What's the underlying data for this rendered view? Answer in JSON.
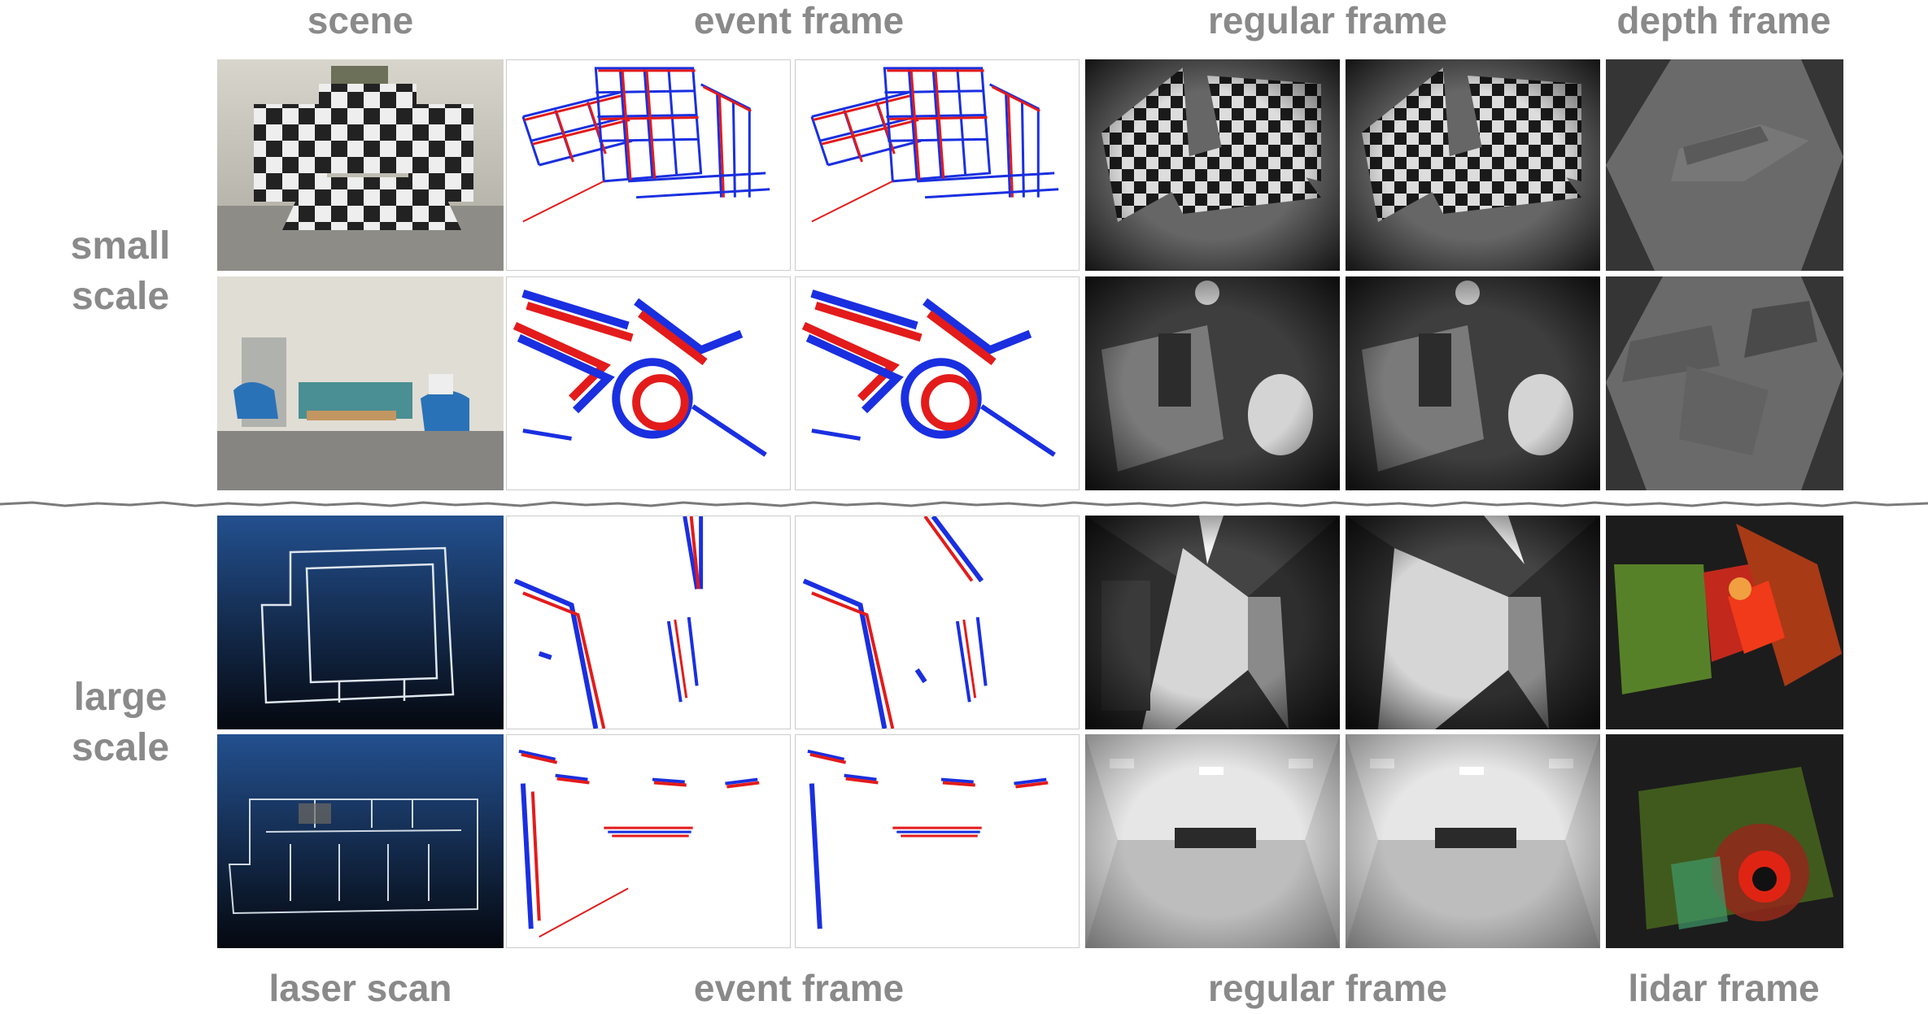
{
  "column_headers_top": {
    "scene": "scene",
    "event_frame": "event frame",
    "regular_frame": "regular frame",
    "depth_frame": "depth frame"
  },
  "column_headers_bottom": {
    "laser_scan": "laser scan",
    "event_frame": "event frame",
    "regular_frame": "regular frame",
    "lidar_frame": "lidar frame"
  },
  "row_labels": {
    "small_line1": "small",
    "small_line2": "scale",
    "large_line1": "large",
    "large_line2": "scale"
  },
  "colors": {
    "label_gray": "#8a8a8a",
    "event_red": "#e31b1b",
    "event_blue": "#1a2fe0",
    "depth_bg": "#353535",
    "laser_top": "#23508f",
    "laser_bottom": "#05080f"
  }
}
